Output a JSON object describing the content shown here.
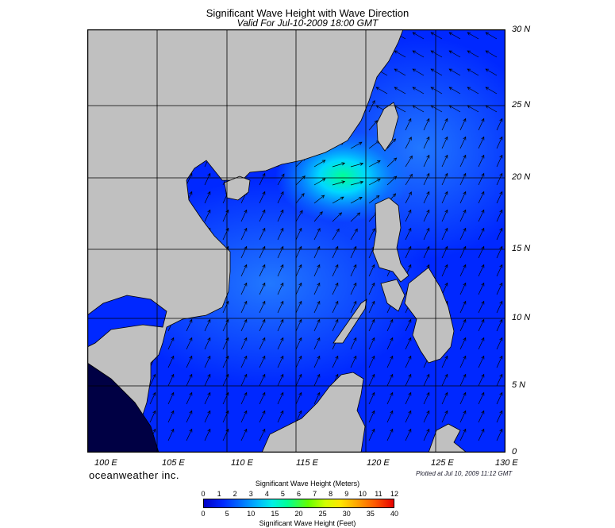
{
  "title": "Significant Wave Height with Wave Direction",
  "subtitle": "Valid For Jul-10-2009 18:00 GMT",
  "lat_labels": [
    "30 N",
    "25 N",
    "20 N",
    "15 N",
    "10 N",
    "5 N",
    "0"
  ],
  "lon_labels": [
    "100 E",
    "105 E",
    "110 E",
    "115 E",
    "120 E",
    "125 E",
    "130 E"
  ],
  "brand": "oceanweather inc.",
  "plotted": "Plotted at Jul 10, 2009 11:12 GMT",
  "colorbar": {
    "title_meters": "Significant Wave Height (Meters)",
    "title_feet": "Significant Wave Height (Feet)",
    "meters_ticks": [
      "0",
      "1",
      "2",
      "3",
      "4",
      "5",
      "6",
      "7",
      "8",
      "9",
      "10",
      "11",
      "12"
    ],
    "feet_ticks": [
      "0",
      "5",
      "10",
      "15",
      "20",
      "25",
      "30",
      "35",
      "40"
    ]
  },
  "colors": {
    "land": "#c0c0c0",
    "sea_low": "#0028ff",
    "sea_mid": "#1e64ff",
    "peak": "#00ff96",
    "grid": "#000000"
  },
  "map_data": {
    "lon_range": [
      100,
      130
    ],
    "lat_range": [
      0,
      30
    ],
    "peak_wave_center": {
      "lon": 117.5,
      "lat": 20
    },
    "wind_direction": "northeast"
  }
}
